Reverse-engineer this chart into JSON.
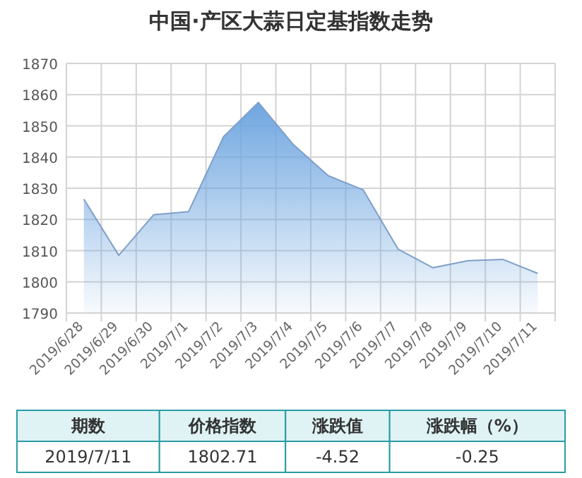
{
  "chart_data": {
    "type": "area",
    "title": "中国·产区大蒜日定基指数走势",
    "categories": [
      "2019/6/28",
      "2019/6/29",
      "2019/6/30",
      "2019/7/1",
      "2019/7/2",
      "2019/7/3",
      "2019/7/4",
      "2019/7/5",
      "2019/7/6",
      "2019/7/7",
      "2019/7/8",
      "2019/7/9",
      "2019/7/10",
      "2019/7/11"
    ],
    "series": [
      {
        "color": "#6fa6e0",
        "values": [
          1826.5,
          1808.5,
          1821.5,
          1822.5,
          1846.5,
          1857.5,
          1844,
          1834,
          1829.5,
          1810.5,
          1804.5,
          1806.8,
          1807.2,
          1802.7
        ]
      }
    ],
    "ylim": [
      1790,
      1870
    ],
    "yticks": [
      1790,
      1800,
      1810,
      1820,
      1830,
      1840,
      1850,
      1860,
      1870
    ],
    "grid": true,
    "marker": "none",
    "annotations": [
      "期数",
      "价格指数",
      "涨跌值",
      "涨跌幅（%）",
      "2019/7/11",
      "1802.71",
      "-4.52",
      "-0.25"
    ]
  }
}
